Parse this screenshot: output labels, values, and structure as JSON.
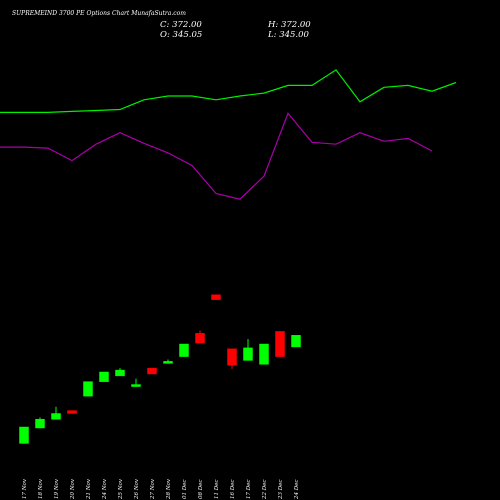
{
  "title": "SUPREMEIND 3700  PE Options  Chart MunafaSutra.com",
  "quote": {
    "close_label": "C: 372.00",
    "open_label": "O: 345.05",
    "high_label": "H: 372.00",
    "low_label": "L: 345.00"
  },
  "colors": {
    "background": "#000000",
    "up": "#00ff00",
    "down": "#ff0000",
    "upper_line": "#00ee00",
    "lower_line": "#aa00aa",
    "text": "#ffffff"
  },
  "chart_data": {
    "type": "candlestick",
    "title": "SUPREMEIND 3700  PE Options  Chart MunafaSutra.com",
    "categories": [
      "17 Nov",
      "18 Nov",
      "19 Nov",
      "20 Nov",
      "21 Nov",
      "24 Nov",
      "25 Nov",
      "26 Nov",
      "27 Nov",
      "28 Nov",
      "01 Dec",
      "08 Dec",
      "11 Dec",
      "16 Dec",
      "17 Dec",
      "22 Dec",
      "23 Dec",
      "24 Dec"
    ],
    "candles": [
      {
        "open": 12,
        "close": 29,
        "high": 29,
        "low": 12,
        "dir": "up"
      },
      {
        "open": 28,
        "close": 37,
        "high": 39,
        "low": 28,
        "dir": "up"
      },
      {
        "open": 37,
        "close": 43,
        "high": 50,
        "low": 37,
        "dir": "up"
      },
      {
        "open": 46,
        "close": 43,
        "high": 46,
        "low": 43,
        "dir": "down"
      },
      {
        "open": 61,
        "close": 76,
        "high": 76,
        "low": 61,
        "dir": "up"
      },
      {
        "open": 76,
        "close": 86,
        "high": 86,
        "low": 76,
        "dir": "up"
      },
      {
        "open": 82,
        "close": 88,
        "high": 90,
        "low": 82,
        "dir": "up"
      },
      {
        "open": 71,
        "close": 73,
        "high": 79,
        "low": 71,
        "dir": "up"
      },
      {
        "open": 90,
        "close": 84,
        "high": 90,
        "low": 84,
        "dir": "down"
      },
      {
        "open": 96,
        "close": 97,
        "high": 99,
        "low": 95,
        "dir": "up"
      },
      {
        "open": 102,
        "close": 115,
        "high": 115,
        "low": 102,
        "dir": "up"
      },
      {
        "open": 126,
        "close": 116,
        "high": 129,
        "low": 116,
        "dir": "down"
      },
      {
        "open": 166,
        "close": 161,
        "high": 166,
        "low": 161,
        "dir": "down"
      },
      {
        "open": 110,
        "close": 93,
        "high": 110,
        "low": 89,
        "dir": "down"
      },
      {
        "open": 98,
        "close": 111,
        "high": 120,
        "low": 98,
        "dir": "up"
      },
      {
        "open": 94,
        "close": 115,
        "high": 115,
        "low": 94,
        "dir": "up"
      },
      {
        "open": 128,
        "close": 102,
        "high": 128,
        "low": 102,
        "dir": "down"
      },
      {
        "open": 112,
        "close": 124,
        "high": 124,
        "low": 112,
        "dir": "up"
      }
    ],
    "upper_line": [
      355,
      355,
      355,
      356,
      357,
      358,
      368,
      372,
      372,
      368,
      372,
      375,
      383,
      383,
      399,
      366,
      381,
      383,
      377,
      386
    ],
    "lower_line": [
      319,
      319,
      318,
      305,
      322,
      334,
      323,
      313,
      300,
      271,
      265,
      289,
      354,
      324,
      322,
      334,
      325,
      328,
      315
    ],
    "ylim": [
      0,
      430
    ],
    "grid": false
  }
}
